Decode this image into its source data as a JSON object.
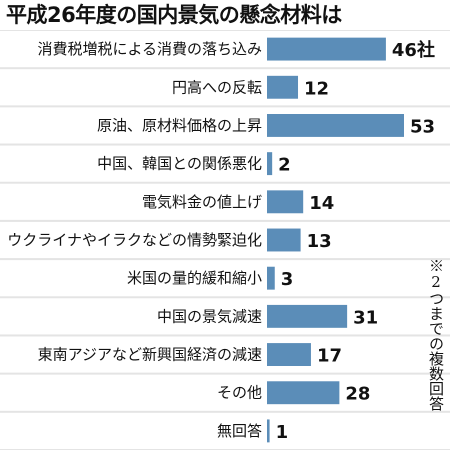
{
  "chart_data": {
    "type": "bar",
    "orientation": "horizontal",
    "title": "平成26年度の国内景気の懸念材料は",
    "categories": [
      "消費税増税による消費の落ち込み",
      "円高への反転",
      "原油、原材料価格の上昇",
      "中国、韓国との関係悪化",
      "電気料金の値上げ",
      "ウクライナやイラクなどの情勢緊迫化",
      "米国の量的緩和縮小",
      "中国の景気減速",
      "東南アジアなど新興国経済の減速",
      "その他",
      "無回答"
    ],
    "values": [
      46,
      12,
      53,
      2,
      14,
      13,
      3,
      31,
      17,
      28,
      1
    ],
    "value_labels": [
      "46社",
      "12",
      "53",
      "2",
      "14",
      "13",
      "3",
      "31",
      "17",
      "28",
      "1"
    ],
    "note": "※2つまでの複数回答",
    "xlim": [
      0,
      53
    ],
    "colors": {
      "bar": "#5b8db8",
      "background": "#e4e4e4"
    }
  }
}
